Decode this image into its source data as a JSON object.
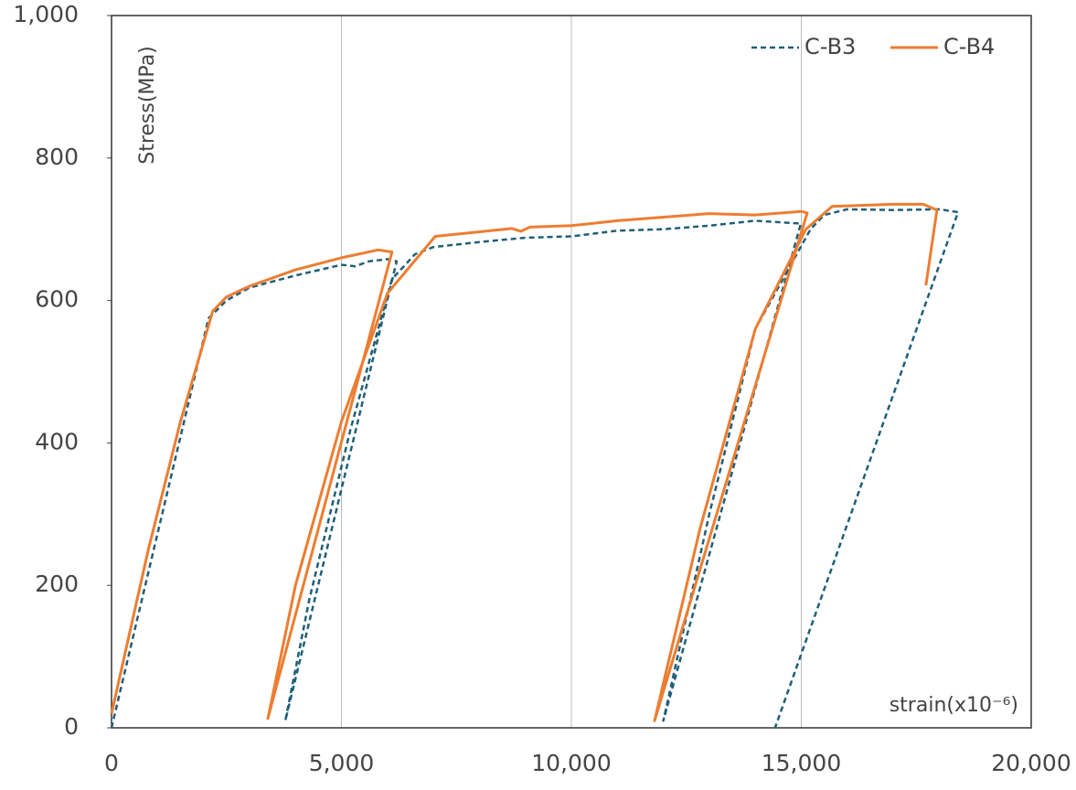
{
  "chart_data": {
    "type": "line",
    "y_label": "Stress(MPa)",
    "x_label": "strain(x10⁻⁶)",
    "xlim": [
      0,
      20000
    ],
    "ylim": [
      0,
      1000
    ],
    "xticks": [
      0,
      {
        "value": 5000,
        "label": "5,000"
      },
      {
        "value": 10000,
        "label": "10,000"
      },
      {
        "value": 15000,
        "label": "15,000"
      },
      {
        "value": 20000,
        "label": "20,000"
      }
    ],
    "yticks": [
      0,
      200,
      400,
      600,
      800,
      {
        "value": 1000,
        "label": "1,000"
      }
    ],
    "grid": "x",
    "legend": "top-right",
    "series": [
      {
        "name": "C-B3",
        "color": "#1f5f7a",
        "dash": true,
        "x": [
          0,
          2110,
          2500,
          3000,
          4000,
          5000,
          5300,
          5600,
          6000,
          6200,
          3780,
          4300,
          5200,
          6100,
          6600,
          7000,
          8000,
          9000,
          10000,
          11000,
          12000,
          13000,
          14000,
          14990,
          12000,
          13000,
          14000,
          15200,
          15500,
          16000,
          17000,
          18000,
          18410,
          14430
        ],
        "values": [
          0,
          575,
          600,
          618,
          635,
          650,
          648,
          655,
          658,
          655,
          10,
          180,
          420,
          630,
          665,
          675,
          682,
          688,
          690,
          698,
          700,
          705,
          712,
          708,
          10,
          300,
          560,
          700,
          720,
          728,
          727,
          728,
          724,
          0
        ]
      },
      {
        "name": "C-B4",
        "color": "#ed7d31",
        "dash": false,
        "x": [
          0,
          800,
          1500,
          2200,
          2500,
          3000,
          4000,
          5000,
          5800,
          6100,
          3400,
          4000,
          5000,
          6000,
          7040,
          8710,
          8900,
          9100,
          10000,
          11000,
          13000,
          14000,
          15000,
          15130,
          11810,
          12800,
          14000,
          15100,
          15670,
          17000,
          17650,
          17950,
          17710
        ],
        "values": [
          20,
          250,
          430,
          585,
          605,
          620,
          643,
          660,
          671,
          668,
          13,
          200,
          430,
          610,
          690,
          701,
          697,
          703,
          705,
          712,
          722,
          720,
          725,
          723,
          10,
          280,
          560,
          700,
          732,
          735,
          735,
          727,
          621
        ]
      }
    ]
  }
}
